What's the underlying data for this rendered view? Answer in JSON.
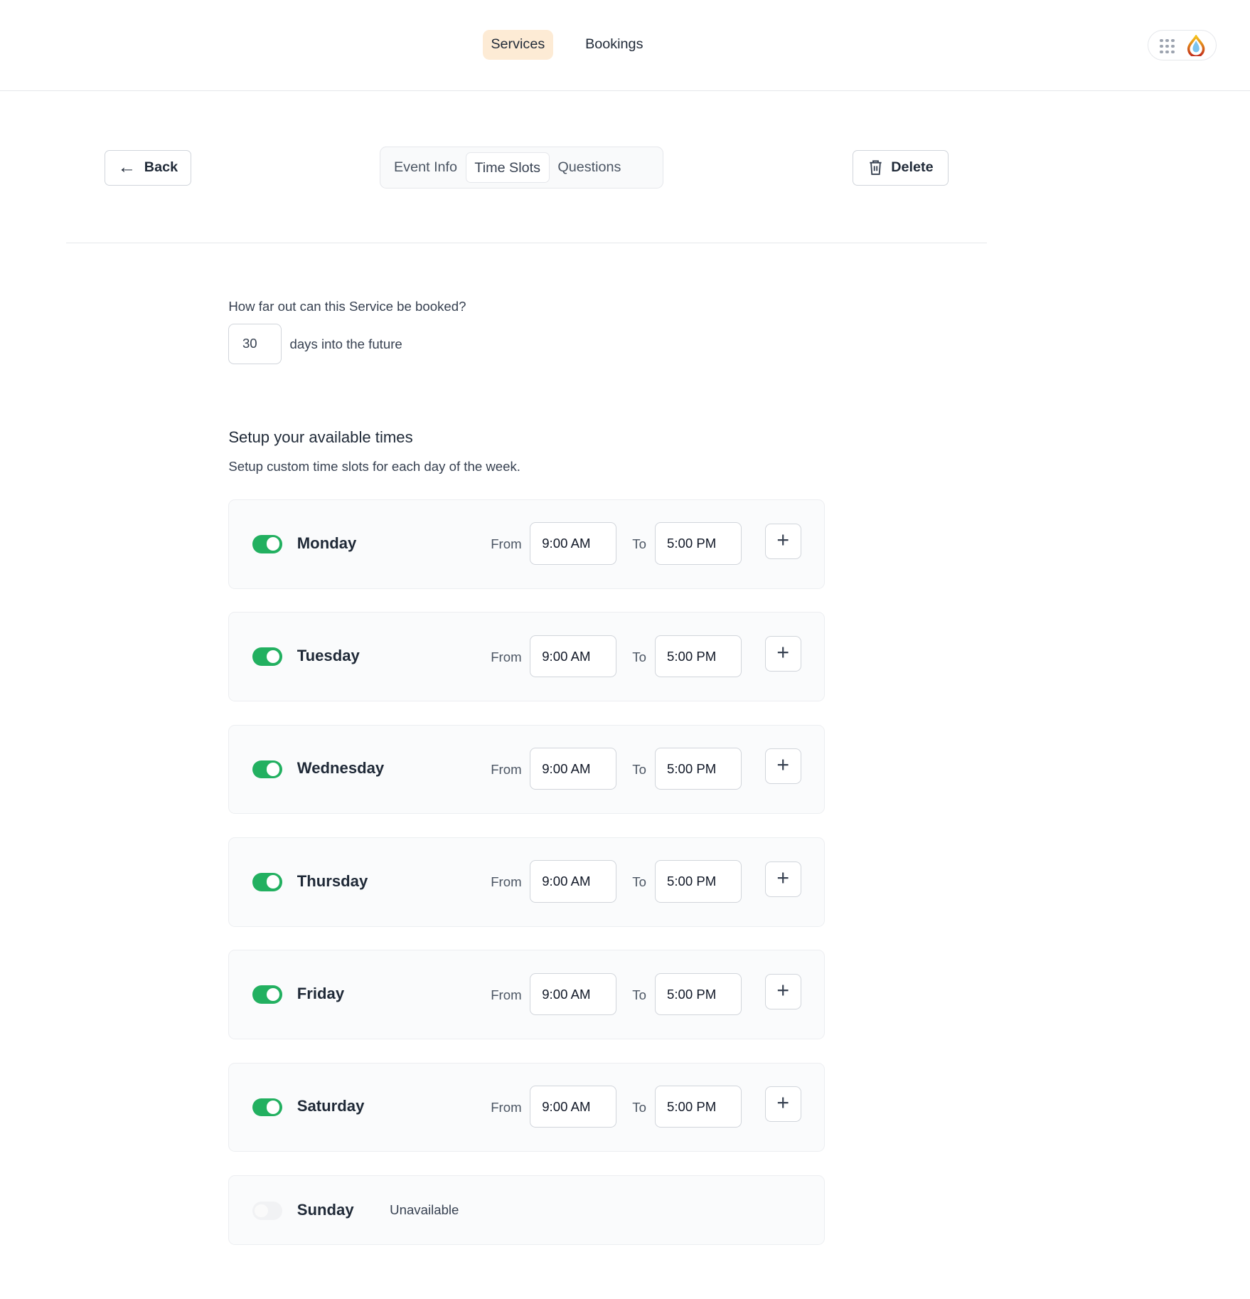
{
  "nav": {
    "items": [
      {
        "label": "Services",
        "active": true
      },
      {
        "label": "Bookings",
        "active": false
      }
    ]
  },
  "header_icons": {
    "apps": "grid-dots-icon",
    "logo": "flame-drop-logo"
  },
  "toolbar": {
    "back_label": "Back",
    "delete_label": "Delete",
    "tabs": [
      {
        "label": "Event Info"
      },
      {
        "label": "Time Slots",
        "active": true
      },
      {
        "label": "Questions"
      }
    ]
  },
  "booking_window": {
    "question": "How far out can this Service be booked?",
    "days": "30",
    "suffix": "days into the future"
  },
  "availability": {
    "title": "Setup your available times",
    "subtitle": "Setup custom time slots for each day of the week.",
    "from_label": "From",
    "to_label": "To",
    "unavailable_label": "Unavailable",
    "days": [
      {
        "name": "Monday",
        "enabled": true,
        "from": "9:00 AM",
        "to": "5:00 PM"
      },
      {
        "name": "Tuesday",
        "enabled": true,
        "from": "9:00 AM",
        "to": "5:00 PM"
      },
      {
        "name": "Wednesday",
        "enabled": true,
        "from": "9:00 AM",
        "to": "5:00 PM"
      },
      {
        "name": "Thursday",
        "enabled": true,
        "from": "9:00 AM",
        "to": "5:00 PM"
      },
      {
        "name": "Friday",
        "enabled": true,
        "from": "9:00 AM",
        "to": "5:00 PM"
      },
      {
        "name": "Saturday",
        "enabled": true,
        "from": "9:00 AM",
        "to": "5:00 PM"
      },
      {
        "name": "Sunday",
        "enabled": false
      }
    ]
  },
  "colors": {
    "accent_on": "#22b060",
    "nav_active_bg": "#fdebd5"
  }
}
